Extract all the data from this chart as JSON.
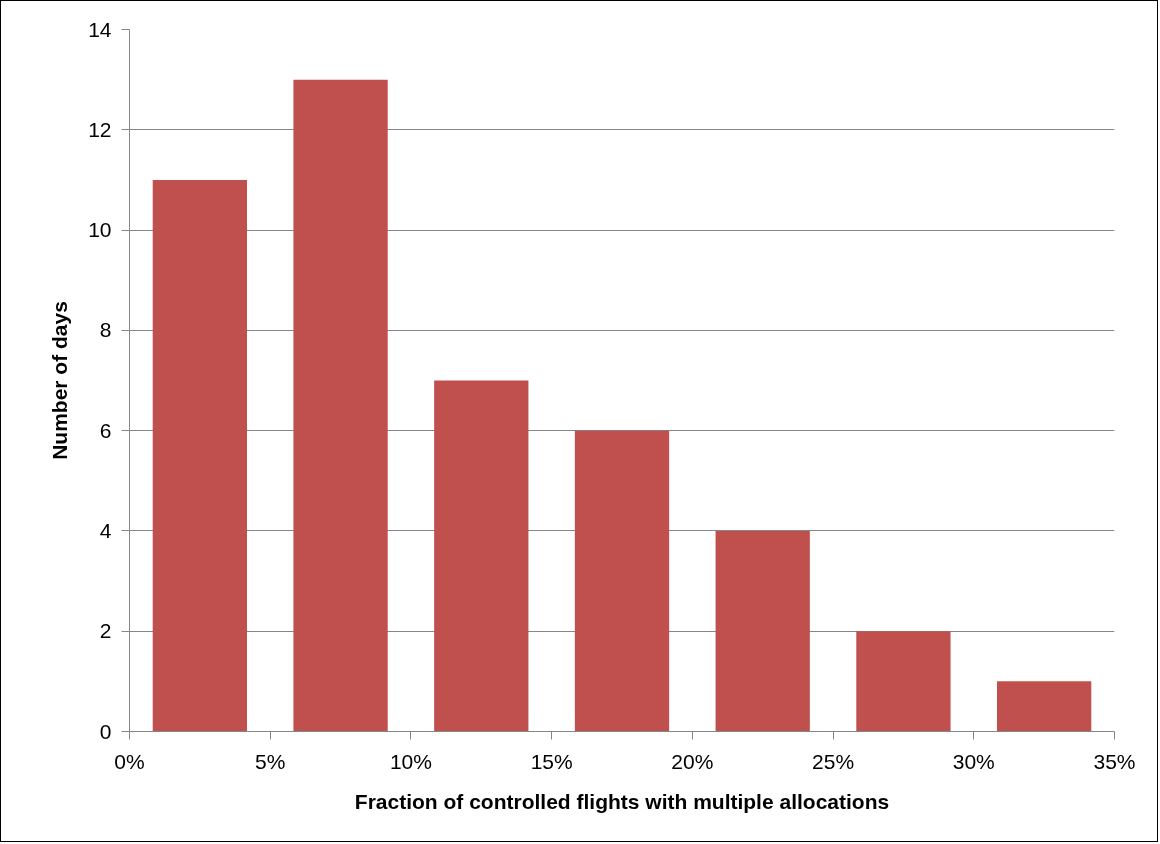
{
  "chart_data": {
    "type": "histogram",
    "xlabel": "Fraction of controlled flights with multiple allocations",
    "ylabel": "Number of days",
    "bins": [
      0,
      5,
      10,
      15,
      20,
      25,
      30,
      35
    ],
    "values": [
      11,
      13,
      7,
      6,
      4,
      2,
      1
    ],
    "color": "#c0504d",
    "xlim": [
      0,
      35
    ],
    "xticks": [
      {
        "value": 0,
        "label": "0%"
      },
      {
        "value": 5,
        "label": "5%"
      },
      {
        "value": 10,
        "label": "10%"
      },
      {
        "value": 15,
        "label": "15%"
      },
      {
        "value": 20,
        "label": "20%"
      },
      {
        "value": 25,
        "label": "25%"
      },
      {
        "value": 30,
        "label": "30%"
      },
      {
        "value": 35,
        "label": "35%"
      }
    ],
    "ylim": [
      0,
      14
    ],
    "yticks": [
      0,
      2,
      4,
      6,
      8,
      10,
      12,
      14
    ],
    "grid": "y"
  }
}
